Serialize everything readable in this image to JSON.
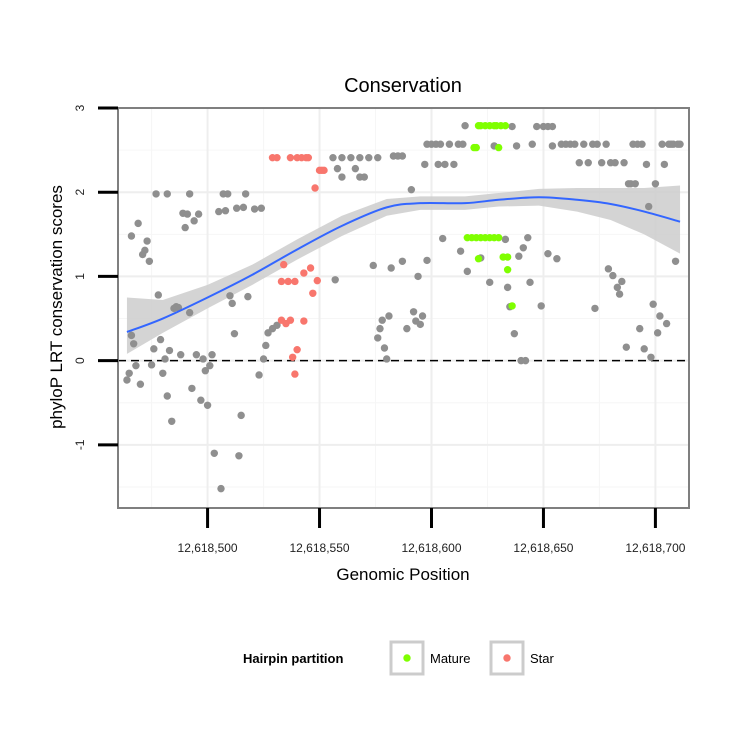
{
  "chart_data": {
    "type": "scatter",
    "title": "Conservation",
    "xlabel": "Genomic Position",
    "ylabel": "phyloP LRT conservation scores",
    "xlim": [
      12618460,
      12618715
    ],
    "ylim": [
      -1.75,
      3.0
    ],
    "x_ticks": [
      12618500,
      12618550,
      12618600,
      12618650,
      12618700
    ],
    "x_tick_labels": [
      "12,618,500",
      "12,618,550",
      "12,618,600",
      "12,618,650",
      "12,618,700"
    ],
    "y_ticks": [
      -1,
      0,
      1,
      2,
      3
    ],
    "y_tick_labels": [
      "-1",
      "0",
      "1",
      "2",
      "3"
    ],
    "reference_line": {
      "y": 0,
      "style": "dashed"
    },
    "legend": {
      "title": "Hairpin partition",
      "placement": "bottom",
      "entries": [
        {
          "label": "Mature",
          "color": "#7FFF00"
        },
        {
          "label": "Star",
          "color": "#F8766D"
        }
      ]
    },
    "colors": {
      "other": "#8F8F8F",
      "mature": "#7FFF00",
      "star": "#F8766D",
      "smooth": "#3366FF",
      "band": "#CCCCCC"
    },
    "smooth": {
      "x": [
        12618464,
        12618480,
        12618500,
        12618520,
        12618540,
        12618560,
        12618580,
        12618595,
        12618615,
        12618630,
        12618648,
        12618665,
        12618680,
        12618695,
        12618711
      ],
      "y": [
        0.34,
        0.5,
        0.75,
        1.02,
        1.32,
        1.6,
        1.82,
        1.87,
        1.87,
        1.91,
        1.94,
        1.91,
        1.86,
        1.77,
        1.65
      ],
      "lower": [
        0.08,
        0.33,
        0.62,
        0.9,
        1.2,
        1.48,
        1.72,
        1.79,
        1.79,
        1.83,
        1.84,
        1.77,
        1.67,
        1.5,
        1.27
      ],
      "upper": [
        0.75,
        0.72,
        0.9,
        1.14,
        1.44,
        1.72,
        1.92,
        1.95,
        1.95,
        1.99,
        2.04,
        2.05,
        2.05,
        2.05,
        2.08
      ]
    },
    "series": [
      {
        "name": "Other",
        "points": [
          [
            12618464,
            -0.23
          ],
          [
            12618465,
            -0.15
          ],
          [
            12618466,
            0.3
          ],
          [
            12618466,
            1.48
          ],
          [
            12618467,
            0.2
          ],
          [
            12618468,
            -0.06
          ],
          [
            12618469,
            1.63
          ],
          [
            12618470,
            -0.28
          ],
          [
            12618471,
            1.26
          ],
          [
            12618472,
            1.31
          ],
          [
            12618473,
            1.42
          ],
          [
            12618474,
            1.18
          ],
          [
            12618475,
            -0.05
          ],
          [
            12618476,
            0.14
          ],
          [
            12618477,
            1.98
          ],
          [
            12618478,
            0.78
          ],
          [
            12618479,
            0.25
          ],
          [
            12618480,
            -0.15
          ],
          [
            12618481,
            0.02
          ],
          [
            12618482,
            1.98
          ],
          [
            12618482,
            -0.42
          ],
          [
            12618483,
            0.12
          ],
          [
            12618484,
            -0.72
          ],
          [
            12618485,
            0.62
          ],
          [
            12618486,
            0.64
          ],
          [
            12618487,
            0.63
          ],
          [
            12618488,
            0.07
          ],
          [
            12618489,
            1.75
          ],
          [
            12618490,
            1.58
          ],
          [
            12618491,
            1.74
          ],
          [
            12618492,
            1.98
          ],
          [
            12618492,
            0.57
          ],
          [
            12618493,
            -0.33
          ],
          [
            12618494,
            1.66
          ],
          [
            12618495,
            0.07
          ],
          [
            12618496,
            1.74
          ],
          [
            12618497,
            -0.47
          ],
          [
            12618498,
            0.02
          ],
          [
            12618499,
            -0.12
          ],
          [
            12618500,
            -0.53
          ],
          [
            12618501,
            -0.06
          ],
          [
            12618502,
            0.07
          ],
          [
            12618503,
            -1.1
          ],
          [
            12618505,
            1.77
          ],
          [
            12618506,
            -1.52
          ],
          [
            12618507,
            1.98
          ],
          [
            12618508,
            1.78
          ],
          [
            12618509,
            1.98
          ],
          [
            12618510,
            0.77
          ],
          [
            12618511,
            0.68
          ],
          [
            12618512,
            0.32
          ],
          [
            12618513,
            1.81
          ],
          [
            12618514,
            -1.13
          ],
          [
            12618515,
            -0.65
          ],
          [
            12618516,
            1.82
          ],
          [
            12618517,
            1.98
          ],
          [
            12618518,
            0.76
          ],
          [
            12618521,
            1.8
          ],
          [
            12618524,
            1.81
          ],
          [
            12618523,
            -0.17
          ],
          [
            12618525,
            0.02
          ],
          [
            12618526,
            0.18
          ],
          [
            12618527,
            0.33
          ],
          [
            12618529,
            0.38
          ],
          [
            12618531,
            0.42
          ],
          [
            12618556,
            2.41
          ],
          [
            12618560,
            2.41
          ],
          [
            12618564,
            2.41
          ],
          [
            12618568,
            2.41
          ],
          [
            12618572,
            2.41
          ],
          [
            12618576,
            2.41
          ],
          [
            12618557,
            0.96
          ],
          [
            12618558,
            2.28
          ],
          [
            12618560,
            2.18
          ],
          [
            12618566,
            2.28
          ],
          [
            12618568,
            2.18
          ],
          [
            12618570,
            2.18
          ],
          [
            12618574,
            1.13
          ],
          [
            12618576,
            0.27
          ],
          [
            12618577,
            0.38
          ],
          [
            12618578,
            0.48
          ],
          [
            12618579,
            0.15
          ],
          [
            12618580,
            0.02
          ],
          [
            12618581,
            0.53
          ],
          [
            12618582,
            1.1
          ],
          [
            12618583,
            2.43
          ],
          [
            12618585,
            2.43
          ],
          [
            12618587,
            2.43
          ],
          [
            12618587,
            1.18
          ],
          [
            12618589,
            0.38
          ],
          [
            12618591,
            2.03
          ],
          [
            12618592,
            0.58
          ],
          [
            12618593,
            0.47
          ],
          [
            12618594,
            1.0
          ],
          [
            12618595,
            0.43
          ],
          [
            12618596,
            0.53
          ],
          [
            12618597,
            2.33
          ],
          [
            12618598,
            2.57
          ],
          [
            12618598,
            1.19
          ],
          [
            12618600,
            2.57
          ],
          [
            12618602,
            2.57
          ],
          [
            12618603,
            2.33
          ],
          [
            12618604,
            2.57
          ],
          [
            12618605,
            1.45
          ],
          [
            12618606,
            2.33
          ],
          [
            12618608,
            2.57
          ],
          [
            12618610,
            2.33
          ],
          [
            12618612,
            2.57
          ],
          [
            12618613,
            1.3
          ],
          [
            12618614,
            2.57
          ],
          [
            12618615,
            2.79
          ],
          [
            12618616,
            1.06
          ],
          [
            12618622,
            1.22
          ],
          [
            12618626,
            0.93
          ],
          [
            12618628,
            2.55
          ],
          [
            12618633,
            1.44
          ],
          [
            12618634,
            0.87
          ],
          [
            12618635,
            0.64
          ],
          [
            12618636,
            2.78
          ],
          [
            12618637,
            0.32
          ],
          [
            12618638,
            2.55
          ],
          [
            12618639,
            1.24
          ],
          [
            12618640,
            0.0
          ],
          [
            12618641,
            1.34
          ],
          [
            12618642,
            0.0
          ],
          [
            12618643,
            1.46
          ],
          [
            12618644,
            0.93
          ],
          [
            12618645,
            2.57
          ],
          [
            12618647,
            2.78
          ],
          [
            12618649,
            0.65
          ],
          [
            12618650,
            2.78
          ],
          [
            12618652,
            2.78
          ],
          [
            12618652,
            1.27
          ],
          [
            12618654,
            2.55
          ],
          [
            12618654,
            2.78
          ],
          [
            12618656,
            1.21
          ],
          [
            12618658,
            2.57
          ],
          [
            12618660,
            2.57
          ],
          [
            12618662,
            2.57
          ],
          [
            12618664,
            2.57
          ],
          [
            12618666,
            2.35
          ],
          [
            12618668,
            2.57
          ],
          [
            12618670,
            2.35
          ],
          [
            12618672,
            2.57
          ],
          [
            12618673,
            0.62
          ],
          [
            12618674,
            2.57
          ],
          [
            12618676,
            2.35
          ],
          [
            12618678,
            2.57
          ],
          [
            12618679,
            1.09
          ],
          [
            12618680,
            2.35
          ],
          [
            12618681,
            1.01
          ],
          [
            12618682,
            2.35
          ],
          [
            12618683,
            0.87
          ],
          [
            12618684,
            0.79
          ],
          [
            12618685,
            0.94
          ],
          [
            12618686,
            2.35
          ],
          [
            12618687,
            0.16
          ],
          [
            12618688,
            2.1
          ],
          [
            12618689,
            2.1
          ],
          [
            12618690,
            2.57
          ],
          [
            12618691,
            2.1
          ],
          [
            12618692,
            2.57
          ],
          [
            12618693,
            0.38
          ],
          [
            12618694,
            2.57
          ],
          [
            12618695,
            0.14
          ],
          [
            12618696,
            2.33
          ],
          [
            12618697,
            1.83
          ],
          [
            12618698,
            0.04
          ],
          [
            12618699,
            0.67
          ],
          [
            12618700,
            2.1
          ],
          [
            12618701,
            0.33
          ],
          [
            12618702,
            0.53
          ],
          [
            12618703,
            2.57
          ],
          [
            12618704,
            2.33
          ],
          [
            12618705,
            0.44
          ],
          [
            12618706,
            2.57
          ],
          [
            12618707,
            2.57
          ],
          [
            12618708,
            2.57
          ],
          [
            12618709,
            1.18
          ],
          [
            12618710,
            2.57
          ],
          [
            12618711,
            2.57
          ]
        ]
      },
      {
        "name": "Mature",
        "points": [
          [
            12618616,
            1.46
          ],
          [
            12618618,
            1.46
          ],
          [
            12618619,
            2.53
          ],
          [
            12618620,
            2.53
          ],
          [
            12618620,
            1.46
          ],
          [
            12618621,
            1.21
          ],
          [
            12618622,
            1.46
          ],
          [
            12618621,
            2.79
          ],
          [
            12618622,
            2.79
          ],
          [
            12618624,
            2.79
          ],
          [
            12618624,
            1.46
          ],
          [
            12618626,
            2.79
          ],
          [
            12618626,
            1.46
          ],
          [
            12618628,
            2.79
          ],
          [
            12618628,
            1.46
          ],
          [
            12618629,
            2.79
          ],
          [
            12618630,
            2.53
          ],
          [
            12618630,
            1.46
          ],
          [
            12618631,
            2.79
          ],
          [
            12618632,
            1.23
          ],
          [
            12618633,
            2.79
          ],
          [
            12618634,
            1.23
          ],
          [
            12618634,
            1.08
          ],
          [
            12618636,
            0.65
          ]
        ]
      },
      {
        "name": "Star",
        "points": [
          [
            12618529,
            2.41
          ],
          [
            12618531,
            2.41
          ],
          [
            12618533,
            0.48
          ],
          [
            12618533,
            0.94
          ],
          [
            12618534,
            1.14
          ],
          [
            12618535,
            0.44
          ],
          [
            12618536,
            0.94
          ],
          [
            12618537,
            0.48
          ],
          [
            12618537,
            2.41
          ],
          [
            12618538,
            0.04
          ],
          [
            12618539,
            0.94
          ],
          [
            12618539,
            -0.16
          ],
          [
            12618540,
            0.13
          ],
          [
            12618540,
            2.41
          ],
          [
            12618542,
            2.41
          ],
          [
            12618543,
            1.04
          ],
          [
            12618543,
            0.47
          ],
          [
            12618544,
            2.41
          ],
          [
            12618545,
            2.41
          ],
          [
            12618546,
            1.1
          ],
          [
            12618547,
            0.8
          ],
          [
            12618548,
            2.05
          ],
          [
            12618549,
            0.95
          ],
          [
            12618550,
            2.26
          ],
          [
            12618551,
            2.26
          ],
          [
            12618552,
            2.26
          ]
        ]
      }
    ]
  }
}
